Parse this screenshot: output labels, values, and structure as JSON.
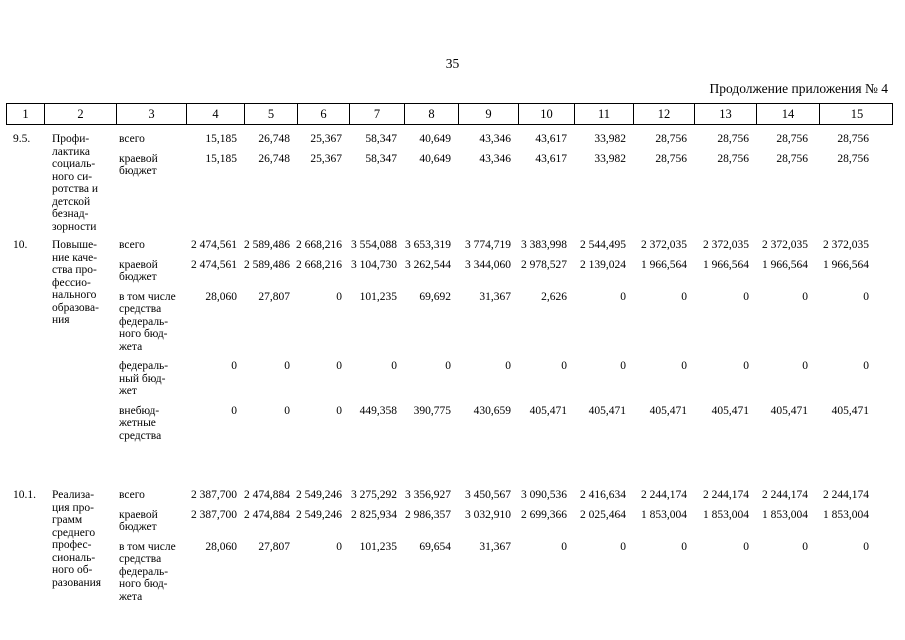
{
  "page": {
    "number": "35",
    "continuation": "Продолжение приложения № 4"
  },
  "table": {
    "column_headers": [
      "1",
      "2",
      "3",
      "4",
      "5",
      "6",
      "7",
      "8",
      "9",
      "10",
      "11",
      "12",
      "13",
      "14",
      "15"
    ],
    "rows": [
      {
        "num": "9.5.",
        "name": "Профи-\nлактика\nсоциаль-\nного си-\nротства и\nдетской\nбезнад-\nзорности",
        "subrows": [
          {
            "label": "всего",
            "values": [
              "15,185",
              "26,748",
              "25,367",
              "58,347",
              "40,649",
              "43,346",
              "43,617",
              "33,982",
              "28,756",
              "28,756",
              "28,756",
              "28,756"
            ]
          },
          {
            "label": "краевой\nбюджет",
            "values": [
              "15,185",
              "26,748",
              "25,367",
              "58,347",
              "40,649",
              "43,346",
              "43,617",
              "33,982",
              "28,756",
              "28,756",
              "28,756",
              "28,756"
            ]
          }
        ]
      },
      {
        "num": "10.",
        "name": "Повыше-\nние каче-\nства про-\nфессио-\nнального\nобразова-\nния",
        "subrows": [
          {
            "label": "всего",
            "values": [
              "2 474,561",
              "2 589,486",
              "2 668,216",
              "3 554,088",
              "3 653,319",
              "3 774,719",
              "3 383,998",
              "2 544,495",
              "2 372,035",
              "2 372,035",
              "2 372,035",
              "2 372,035"
            ]
          },
          {
            "label": "краевой\nбюджет",
            "values": [
              "2 474,561",
              "2 589,486",
              "2 668,216",
              "3 104,730",
              "3 262,544",
              "3 344,060",
              "2 978,527",
              "2 139,024",
              "1 966,564",
              "1 966,564",
              "1 966,564",
              "1 966,564"
            ]
          },
          {
            "label": "в том числе\nсредства\nфедераль-\nного бюд-\nжета",
            "values": [
              "28,060",
              "27,807",
              "0",
              "101,235",
              "69,692",
              "31,367",
              "2,626",
              "0",
              "0",
              "0",
              "0",
              "0"
            ]
          },
          {
            "label": "федераль-\nный бюд-\nжет",
            "values": [
              "0",
              "0",
              "0",
              "0",
              "0",
              "0",
              "0",
              "0",
              "0",
              "0",
              "0",
              "0"
            ]
          },
          {
            "label": "внебюд-\nжетные\nсредства",
            "values": [
              "0",
              "0",
              "0",
              "449,358",
              "390,775",
              "430,659",
              "405,471",
              "405,471",
              "405,471",
              "405,471",
              "405,471",
              "405,471"
            ]
          }
        ]
      },
      {
        "num": "10.1.",
        "name": "Реализа-\nция про-\nграмм\nсреднего\nпрофес-\nсиональ-\nного об-\nразования",
        "subrows": [
          {
            "label": "всего",
            "values": [
              "2 387,700",
              "2 474,884",
              "2 549,246",
              "3 275,292",
              "3 356,927",
              "3 450,567",
              "3 090,536",
              "2 416,634",
              "2 244,174",
              "2 244,174",
              "2 244,174",
              "2 244,174"
            ]
          },
          {
            "label": "краевой\nбюджет",
            "values": [
              "2 387,700",
              "2 474,884",
              "2 549,246",
              "2 825,934",
              "2 986,357",
              "3 032,910",
              "2 699,366",
              "2 025,464",
              "1 853,004",
              "1 853,004",
              "1 853,004",
              "1 853,004"
            ]
          },
          {
            "label": "в том числе\nсредства\nфедераль-\nного бюд-\nжета",
            "values": [
              "28,060",
              "27,807",
              "0",
              "101,235",
              "69,654",
              "31,367",
              "0",
              "0",
              "0",
              "0",
              "0",
              "0"
            ]
          }
        ]
      }
    ]
  }
}
